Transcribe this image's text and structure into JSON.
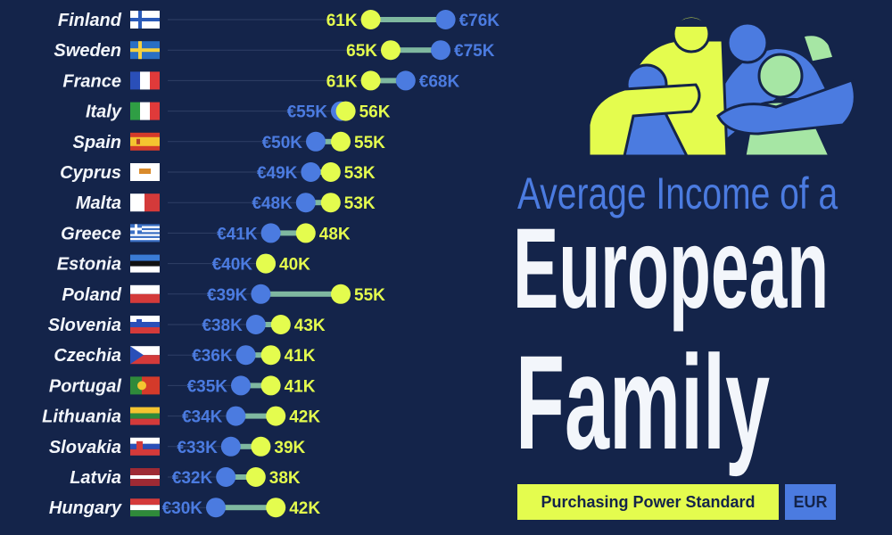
{
  "title": {
    "line1": "Average Income of a",
    "line2": "European",
    "line3": "Family"
  },
  "legend": {
    "pps_label": "Purchasing Power Standard (PPS)",
    "eur_label": "EUR"
  },
  "colors": {
    "background": "#14244a",
    "pps": "#e4fc4e",
    "eur": "#4b7be0",
    "text": "#f3f6fb"
  },
  "chart_data": {
    "type": "dumbbell",
    "unit": "thousand",
    "series": [
      {
        "name": "Purchasing Power Standard (PPS)",
        "key": "pps"
      },
      {
        "name": "EUR",
        "key": "eur"
      }
    ],
    "rows": [
      {
        "country": "Finland",
        "pps": 61,
        "eur": 76,
        "pps_label": "61K",
        "eur_label": "€76K"
      },
      {
        "country": "Sweden",
        "pps": 65,
        "eur": 75,
        "pps_label": "65K",
        "eur_label": "€75K"
      },
      {
        "country": "France",
        "pps": 61,
        "eur": 68,
        "pps_label": "61K",
        "eur_label": "€68K"
      },
      {
        "country": "Italy",
        "pps": 56,
        "eur": 55,
        "pps_label": "56K",
        "eur_label": "€55K"
      },
      {
        "country": "Spain",
        "pps": 55,
        "eur": 50,
        "pps_label": "55K",
        "eur_label": "€50K"
      },
      {
        "country": "Cyprus",
        "pps": 53,
        "eur": 49,
        "pps_label": "53K",
        "eur_label": "€49K"
      },
      {
        "country": "Malta",
        "pps": 53,
        "eur": 48,
        "pps_label": "53K",
        "eur_label": "€48K"
      },
      {
        "country": "Greece",
        "pps": 48,
        "eur": 41,
        "pps_label": "48K",
        "eur_label": "€41K"
      },
      {
        "country": "Estonia",
        "pps": 40,
        "eur": 40,
        "pps_label": "40K",
        "eur_label": "€40K"
      },
      {
        "country": "Poland",
        "pps": 55,
        "eur": 39,
        "pps_label": "55K",
        "eur_label": "€39K"
      },
      {
        "country": "Slovenia",
        "pps": 43,
        "eur": 38,
        "pps_label": "43K",
        "eur_label": "€38K"
      },
      {
        "country": "Czechia",
        "pps": 41,
        "eur": 36,
        "pps_label": "41K",
        "eur_label": "€36K"
      },
      {
        "country": "Portugal",
        "pps": 41,
        "eur": 35,
        "pps_label": "41K",
        "eur_label": "€35K"
      },
      {
        "country": "Lithuania",
        "pps": 42,
        "eur": 34,
        "pps_label": "42K",
        "eur_label": "€34K"
      },
      {
        "country": "Slovakia",
        "pps": 39,
        "eur": 33,
        "pps_label": "39K",
        "eur_label": "€33K"
      },
      {
        "country": "Latvia",
        "pps": 38,
        "eur": 32,
        "pps_label": "38K",
        "eur_label": "€32K"
      },
      {
        "country": "Hungary",
        "pps": 42,
        "eur": 30,
        "pps_label": "42K",
        "eur_label": "€30K"
      }
    ]
  }
}
